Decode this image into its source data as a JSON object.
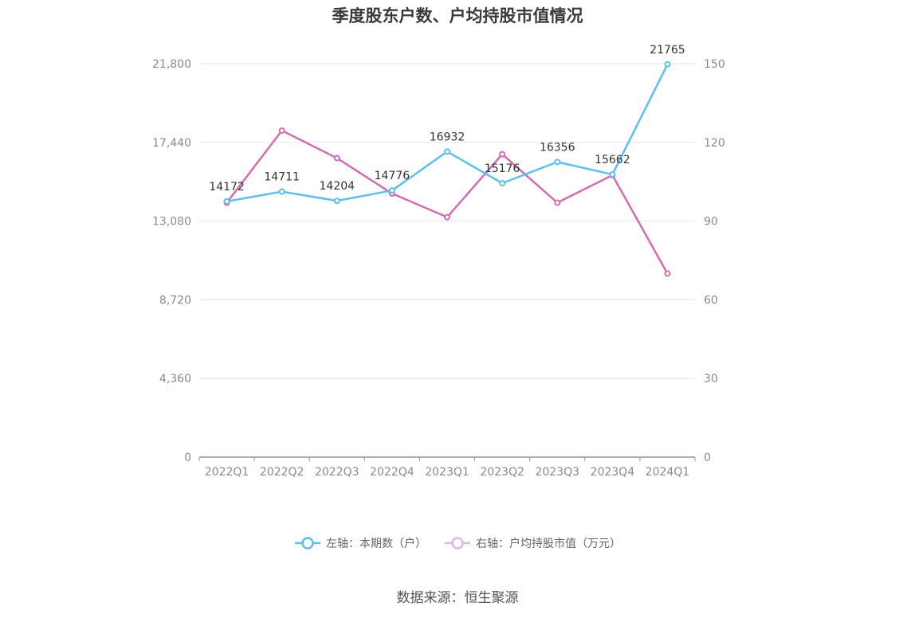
{
  "chart_data": {
    "type": "line",
    "title": "季度股东户数、户均持股市值情况",
    "categories": [
      "2022Q1",
      "2022Q2",
      "2022Q3",
      "2022Q4",
      "2023Q1",
      "2023Q2",
      "2023Q3",
      "2023Q4",
      "2024Q1"
    ],
    "left_axis": {
      "ticks": [
        "0",
        "4,360",
        "8,720",
        "13,080",
        "17,440",
        "21,800"
      ],
      "min": 0,
      "max": 21800
    },
    "right_axis": {
      "ticks": [
        "0",
        "30",
        "60",
        "90",
        "120",
        "150"
      ],
      "min": 0,
      "max": 150
    },
    "grid": true,
    "legend_position": "bottom",
    "series": [
      {
        "name": "左轴：本期数（户）",
        "axis": "left",
        "color": "#5bc0f0",
        "values": [
          14172,
          14711,
          14204,
          14776,
          16932,
          15176,
          16356,
          15662,
          21765
        ],
        "labels": [
          "14172",
          "14711",
          "14204",
          "14776",
          "16932",
          "15176",
          "16356",
          "15662",
          "21765"
        ]
      },
      {
        "name": "右轴：户均持股市值（万元）",
        "axis": "right",
        "color": "#d36cb1",
        "values": [
          97,
          124.5,
          114,
          100.5,
          91.5,
          115.5,
          97,
          107.5,
          70
        ]
      }
    ]
  },
  "source": "数据来源：恒生聚源"
}
